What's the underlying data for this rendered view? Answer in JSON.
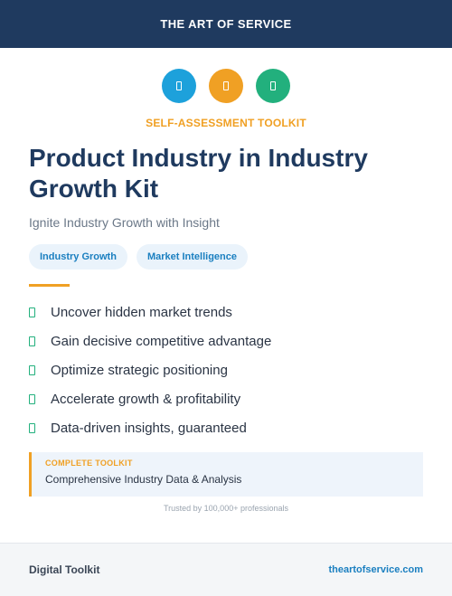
{
  "header": {
    "brand": "THE ART OF SERVICE"
  },
  "icons": [
    {
      "name": "icon-blue",
      "color": "#1da1db"
    },
    {
      "name": "icon-orange",
      "color": "#f0a024"
    },
    {
      "name": "icon-green",
      "color": "#22b07d"
    }
  ],
  "eyebrow": "SELF-ASSESSMENT TOOLKIT",
  "title": "Product Industry in Industry Growth Kit",
  "subtitle": "Ignite Industry Growth with Insight",
  "tags": [
    "Industry Growth",
    "Market Intelligence"
  ],
  "features": [
    "Uncover hidden market trends",
    "Gain decisive competitive advantage",
    "Optimize strategic positioning",
    "Accelerate growth & profitability",
    "Data-driven insights, guaranteed"
  ],
  "callout": {
    "label": "COMPLETE TOOLKIT",
    "text": "Comprehensive Industry Data & Analysis"
  },
  "trust": "Trusted by 100,000+ professionals",
  "footer": {
    "left": "Digital Toolkit",
    "right": "theartofservice.com"
  },
  "colors": {
    "navy": "#1f3a5f",
    "accent_orange": "#f0a024",
    "accent_blue": "#1a7fc0",
    "accent_green": "#22b07d"
  }
}
